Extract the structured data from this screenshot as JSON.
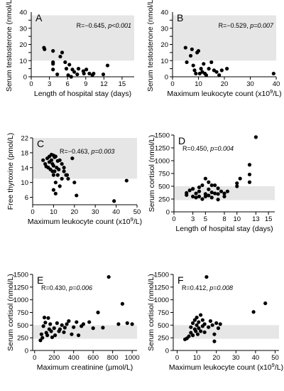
{
  "colors": {
    "band": "#e6e6e6",
    "point": "#000000",
    "axis": "#000000"
  },
  "chart_data": [
    {
      "type": "scatter",
      "letter": "A",
      "stat": "R=−0.645, ",
      "p": "p<0.001",
      "xlabel": "Length of hospital stay (days)",
      "ylabel": "Serum testosterone (nmol/L)",
      "xlim": [
        0,
        17
      ],
      "ylim": [
        0,
        40
      ],
      "xticks": [
        0,
        3,
        6,
        9,
        12,
        15
      ],
      "yticks": [
        0,
        10,
        20,
        30,
        40
      ],
      "band": [
        10,
        38
      ],
      "points": [
        [
          2.1,
          18
        ],
        [
          2.2,
          17
        ],
        [
          3.6,
          16
        ],
        [
          3.6,
          9
        ],
        [
          3.6,
          8
        ],
        [
          3.6,
          4.5
        ],
        [
          4.3,
          1.5
        ],
        [
          4.8,
          12.5
        ],
        [
          5.1,
          15
        ],
        [
          5.6,
          9
        ],
        [
          5.8,
          5
        ],
        [
          6.1,
          1
        ],
        [
          6.3,
          7.5
        ],
        [
          6.6,
          0
        ],
        [
          6.8,
          4.5
        ],
        [
          7.1,
          3
        ],
        [
          7.6,
          1.5
        ],
        [
          7.8,
          5
        ],
        [
          8.6,
          3.5
        ],
        [
          8.7,
          2
        ],
        [
          9.1,
          4.5
        ],
        [
          9.6,
          2
        ],
        [
          10.1,
          1
        ],
        [
          10.3,
          2
        ],
        [
          11.9,
          1.5
        ],
        [
          12.6,
          7
        ]
      ]
    },
    {
      "type": "scatter",
      "letter": "B",
      "stat": "R=−0.529, ",
      "p": "p=0.007",
      "xlabel": "Maximum leukocyte count (x10",
      "xlabel_sup": "9",
      "xlabel_end": "/L)",
      "ylabel": "Serum testosterone (nmol/L)",
      "xlim": [
        0,
        40
      ],
      "ylim": [
        0,
        40
      ],
      "xticks": [
        0,
        10,
        20,
        30,
        40
      ],
      "yticks": [
        0,
        10,
        20,
        30,
        40
      ],
      "band": [
        10,
        38
      ],
      "points": [
        [
          5,
          18
        ],
        [
          5.5,
          9
        ],
        [
          7,
          13
        ],
        [
          7.5,
          17
        ],
        [
          8,
          7
        ],
        [
          8.5,
          4
        ],
        [
          9,
          2
        ],
        [
          9.5,
          15
        ],
        [
          10,
          16
        ],
        [
          10.5,
          2
        ],
        [
          11,
          5
        ],
        [
          11.5,
          3
        ],
        [
          12,
          8
        ],
        [
          12.5,
          2
        ],
        [
          13,
          1
        ],
        [
          14,
          5
        ],
        [
          15,
          9
        ],
        [
          16,
          4
        ],
        [
          17,
          3
        ],
        [
          18,
          1
        ],
        [
          19,
          4
        ],
        [
          21,
          5
        ],
        [
          39,
          2
        ]
      ]
    },
    {
      "type": "scatter",
      "letter": "C",
      "stat": "R=−0.463, ",
      "p": "p=0.003",
      "xlabel": "Maximum leukocyte count (x10",
      "xlabel_sup": "9",
      "xlabel_end": "/L)",
      "ylabel": "Free thyroxine (pmol/L)",
      "xlim": [
        0,
        50
      ],
      "ylim": [
        4,
        22
      ],
      "xticks": [
        0,
        10,
        20,
        30,
        40,
        50
      ],
      "yticks": [
        6,
        10,
        14,
        18,
        22
      ],
      "band": [
        11,
        22
      ],
      "points": [
        [
          5,
          16
        ],
        [
          6,
          15
        ],
        [
          6.5,
          14.3
        ],
        [
          7,
          16.5
        ],
        [
          7.5,
          14
        ],
        [
          8,
          15.5
        ],
        [
          8,
          17
        ],
        [
          8.5,
          13.5
        ],
        [
          9,
          17.5
        ],
        [
          9,
          16
        ],
        [
          9.5,
          15
        ],
        [
          9.5,
          13
        ],
        [
          10,
          17.3
        ],
        [
          10,
          14.5
        ],
        [
          10,
          12
        ],
        [
          10,
          8
        ],
        [
          10.5,
          16.8
        ],
        [
          10.5,
          13
        ],
        [
          11,
          17
        ],
        [
          11,
          10
        ],
        [
          11,
          7
        ],
        [
          11.5,
          14
        ],
        [
          12,
          15.8
        ],
        [
          12,
          12
        ],
        [
          12.5,
          13.5
        ],
        [
          13,
          16
        ],
        [
          13,
          9
        ],
        [
          14,
          15
        ],
        [
          14,
          11
        ],
        [
          15,
          14
        ],
        [
          15,
          13
        ],
        [
          16,
          12
        ],
        [
          16.5,
          12
        ],
        [
          17,
          11
        ],
        [
          19,
          16.5
        ],
        [
          20,
          10
        ],
        [
          21,
          6.5
        ],
        [
          39,
          5
        ],
        [
          45,
          10.5
        ]
      ]
    },
    {
      "type": "scatter",
      "letter": "D",
      "stat": "R=0.450, ",
      "p": "p=0.004",
      "xlabel": "Length of hospital stay (days)",
      "ylabel": "Serum cortisol (nmol/L)",
      "xlim": [
        0,
        16
      ],
      "ylim": [
        0,
        1500
      ],
      "xticks": [
        0,
        3,
        5,
        8,
        10,
        13,
        15
      ],
      "yticks": [
        0,
        250,
        500,
        750,
        1000,
        1250,
        1500
      ],
      "band": [
        230,
        500
      ],
      "points": [
        [
          2,
          370
        ],
        [
          2,
          330
        ],
        [
          2.5,
          420
        ],
        [
          3,
          450
        ],
        [
          3,
          300
        ],
        [
          3.5,
          360
        ],
        [
          3.5,
          280
        ],
        [
          4,
          480
        ],
        [
          4,
          400
        ],
        [
          4,
          300
        ],
        [
          4.5,
          520
        ],
        [
          4.5,
          250
        ],
        [
          5,
          650
        ],
        [
          5,
          350
        ],
        [
          5,
          300
        ],
        [
          5.5,
          580
        ],
        [
          5.5,
          440
        ],
        [
          5.5,
          320
        ],
        [
          6,
          520
        ],
        [
          6,
          380
        ],
        [
          6,
          280
        ],
        [
          6.5,
          520
        ],
        [
          6.5,
          360
        ],
        [
          7,
          460
        ],
        [
          7,
          350
        ],
        [
          7,
          240
        ],
        [
          7.5,
          400
        ],
        [
          8,
          360
        ],
        [
          8,
          300
        ],
        [
          8.5,
          400
        ],
        [
          10,
          500
        ],
        [
          10,
          560
        ],
        [
          10.5,
          650
        ],
        [
          12,
          730
        ],
        [
          12,
          580
        ],
        [
          12,
          920
        ],
        [
          13,
          1460
        ]
      ]
    },
    {
      "type": "scatter",
      "letter": "E",
      "stat": "R=0.430, ",
      "p": "p=0.006",
      "xlabel": "Maximum creatinine (µmol/L)",
      "ylabel": "Serum cortisol (nmol/L)",
      "xlim": [
        -20,
        1050
      ],
      "ylim": [
        0,
        1500
      ],
      "xticks": [
        0,
        200,
        400,
        600,
        800,
        1000
      ],
      "yticks": [
        0,
        250,
        500,
        750,
        1000,
        1250,
        1500
      ],
      "band": [
        230,
        500
      ],
      "points": [
        [
          60,
          200
        ],
        [
          70,
          320
        ],
        [
          80,
          250
        ],
        [
          90,
          480
        ],
        [
          100,
          650
        ],
        [
          110,
          550
        ],
        [
          120,
          350
        ],
        [
          130,
          300
        ],
        [
          140,
          640
        ],
        [
          150,
          420
        ],
        [
          160,
          520
        ],
        [
          170,
          380
        ],
        [
          180,
          260
        ],
        [
          200,
          440
        ],
        [
          210,
          300
        ],
        [
          230,
          540
        ],
        [
          250,
          380
        ],
        [
          260,
          420
        ],
        [
          280,
          500
        ],
        [
          300,
          360
        ],
        [
          310,
          450
        ],
        [
          330,
          520
        ],
        [
          350,
          580
        ],
        [
          380,
          320
        ],
        [
          400,
          460
        ],
        [
          430,
          560
        ],
        [
          450,
          300
        ],
        [
          480,
          480
        ],
        [
          500,
          520
        ],
        [
          560,
          560
        ],
        [
          600,
          440
        ],
        [
          650,
          750
        ],
        [
          700,
          450
        ],
        [
          760,
          1450
        ],
        [
          860,
          520
        ],
        [
          900,
          920
        ],
        [
          950,
          540
        ],
        [
          1000,
          520
        ]
      ]
    },
    {
      "type": "scatter",
      "letter": "F",
      "stat": "R=0.412, ",
      "p": "p=0.008",
      "xlabel": "Maximum leukocyte count (x10",
      "xlabel_sup": "9",
      "xlabel_end": "/L)",
      "ylabel": "Serum cortisol (nmol/L)",
      "xlim": [
        -2,
        52
      ],
      "ylim": [
        0,
        1500
      ],
      "xticks": [
        0,
        10,
        20,
        30,
        40,
        50
      ],
      "yticks": [
        0,
        250,
        500,
        750,
        1000,
        1250,
        1500
      ],
      "band": [
        230,
        500
      ],
      "points": [
        [
          4,
          220
        ],
        [
          5,
          240
        ],
        [
          6,
          280
        ],
        [
          7,
          350
        ],
        [
          7,
          460
        ],
        [
          8,
          300
        ],
        [
          8,
          540
        ],
        [
          9,
          420
        ],
        [
          9,
          600
        ],
        [
          9.5,
          380
        ],
        [
          10,
          650
        ],
        [
          10,
          500
        ],
        [
          10.5,
          320
        ],
        [
          11,
          560
        ],
        [
          11,
          440
        ],
        [
          12,
          380
        ],
        [
          12,
          700
        ],
        [
          13,
          480
        ],
        [
          13,
          600
        ],
        [
          14,
          520
        ],
        [
          14,
          360
        ],
        [
          15,
          1450
        ],
        [
          16,
          460
        ],
        [
          17,
          580
        ],
        [
          18,
          500
        ],
        [
          19,
          320
        ],
        [
          19,
          180
        ],
        [
          20,
          540
        ],
        [
          21,
          440
        ],
        [
          22,
          520
        ],
        [
          39,
          760
        ],
        [
          45,
          930
        ]
      ]
    }
  ]
}
